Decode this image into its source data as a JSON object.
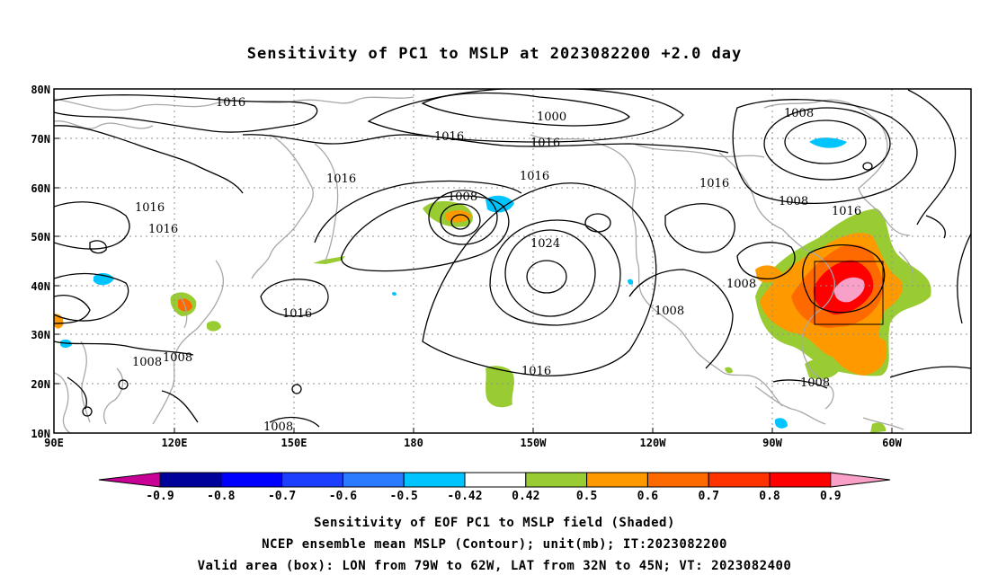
{
  "title": "Sensitivity of PC1 to MSLP at 2023082200 +2.0 day",
  "lat_labels": [
    "80N",
    "70N",
    "60N",
    "50N",
    "40N",
    "30N",
    "20N",
    "10N"
  ],
  "lon_labels": [
    "90E",
    "120E",
    "150E",
    "180",
    "150W",
    "120W",
    "90W",
    "60W"
  ],
  "contour_labels": [
    {
      "text": "1016"
    },
    {
      "text": "1000"
    },
    {
      "text": "1016"
    },
    {
      "text": "1016"
    },
    {
      "text": "1008"
    },
    {
      "text": "1016"
    },
    {
      "text": "1016"
    },
    {
      "text": "1016"
    },
    {
      "text": "1008"
    },
    {
      "text": "1016"
    },
    {
      "text": "1016"
    },
    {
      "text": "1024"
    },
    {
      "text": "1016"
    },
    {
      "text": "1008"
    },
    {
      "text": "1008"
    },
    {
      "text": "1008"
    },
    {
      "text": "1016"
    },
    {
      "text": "1008"
    },
    {
      "text": "1008"
    },
    {
      "text": "1008"
    },
    {
      "text": "1016"
    },
    {
      "text": "1008"
    },
    {
      "text": "1008"
    }
  ],
  "colorbar": {
    "labels": [
      "-0.9",
      "-0.8",
      "-0.7",
      "-0.6",
      "-0.5",
      "-0.42",
      "0.42",
      "0.5",
      "0.6",
      "0.7",
      "0.8",
      "0.9"
    ],
    "colors": [
      "#00009b",
      "#0000ff",
      "#1c3fff",
      "#2a7bff",
      "#00c4ff",
      "#ffffff",
      "#99cc33",
      "#ff9900",
      "#ff6a00",
      "#ff3300",
      "#ff0000"
    ],
    "low_color": "#c80096",
    "high_color": "#f9a0c8"
  },
  "valid_box": {
    "lon_min": "79W",
    "lon_max": "62W",
    "lat_min": "32N",
    "lat_max": "45N"
  },
  "captions": [
    "Sensitivity of EOF PC1 to MSLP field (Shaded)",
    "NCEP ensemble mean MSLP (Contour); unit(mb); IT:2023082200",
    "Valid area (box): LON from 79W to 62W, LAT from 32N to 45N; VT: 2023082400"
  ]
}
